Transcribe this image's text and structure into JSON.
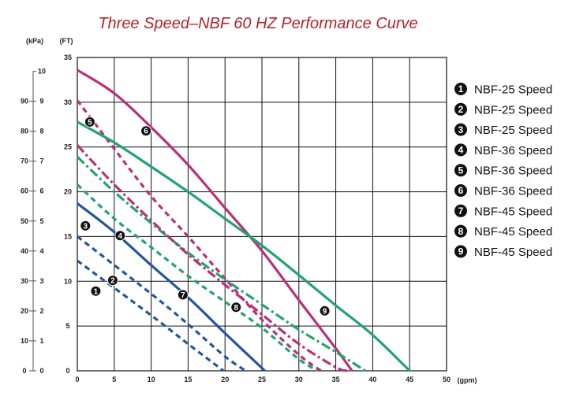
{
  "chart_data": {
    "type": "line",
    "title": "Three Speed–NBF 60 HZ Performance Curve",
    "x_unit": "(gpm)",
    "y_unit_ft": "(FT)",
    "y_unit_kpa": "(kPa)",
    "xlim": [
      0,
      50
    ],
    "ylim": [
      0,
      35
    ],
    "x_ticks": [
      "0",
      "5",
      "10",
      "15",
      "20",
      "25",
      "30",
      "35",
      "40",
      "45",
      "50"
    ],
    "y_ticks_ft": [
      "0",
      "5",
      "10",
      "15",
      "20",
      "25",
      "30",
      "35"
    ],
    "y_ticks_kpa": [
      "0",
      "10",
      "20",
      "30",
      "40",
      "50",
      "60",
      "70",
      "80",
      "90"
    ],
    "y_ticks_kpa_minor": [
      "0",
      "1",
      "2",
      "3",
      "4",
      "5",
      "6",
      "7",
      "8",
      "9",
      "10"
    ],
    "grid": true,
    "legend_position": "right",
    "colors": {
      "blue": "#23569e",
      "magenta": "#b8307a",
      "green": "#23a36f"
    },
    "series": [
      {
        "name": "NBF-25 Speed",
        "marker": "1",
        "color": "#23569e",
        "style": "dashed",
        "x": [
          0,
          10,
          15,
          19.8
        ],
        "y": [
          12.3,
          6.2,
          3.0,
          0
        ]
      },
      {
        "name": "NBF-25 Speed",
        "marker": "2",
        "color": "#23569e",
        "style": "dashed",
        "x": [
          0,
          10,
          15,
          20,
          22.8
        ],
        "y": [
          15.0,
          8.6,
          5.2,
          1.6,
          0
        ]
      },
      {
        "name": "NBF-25 Speed",
        "marker": "3",
        "color": "#23569e",
        "style": "solid",
        "x": [
          0,
          5,
          10,
          15,
          20,
          25.4
        ],
        "y": [
          18.7,
          15.5,
          11.8,
          8.2,
          4.2,
          0
        ]
      },
      {
        "name": "NBF-36 Speed",
        "marker": "4",
        "color": "#23a36f",
        "style": "dashed",
        "x": [
          0,
          5,
          10,
          15,
          20,
          25,
          30,
          32.6
        ],
        "y": [
          20.8,
          17.0,
          13.8,
          10.6,
          7.7,
          4.8,
          1.3,
          0
        ]
      },
      {
        "name": "NBF-36 Speed",
        "marker": "5",
        "color": "#b8307a",
        "style": "dashed",
        "x": [
          0,
          5,
          10,
          15,
          20,
          25,
          30,
          33.0
        ],
        "y": [
          30.2,
          24.8,
          19.5,
          15.0,
          10.3,
          5.7,
          1.8,
          0
        ]
      },
      {
        "name": "NBF-36 Speed",
        "marker": "6",
        "color": "#b8307a",
        "style": "solid",
        "x": [
          0,
          5,
          10,
          15,
          20,
          25,
          30,
          35,
          37.2
        ],
        "y": [
          33.6,
          31.0,
          27.2,
          23.0,
          18.2,
          13.4,
          7.9,
          2.5,
          0
        ]
      },
      {
        "name": "NBF-45 Speed",
        "marker": "7",
        "color": "#23a36f",
        "style": "dashdot",
        "x": [
          0,
          5,
          10,
          15,
          20,
          25,
          30,
          35,
          39.0
        ],
        "y": [
          23.9,
          20.0,
          16.5,
          13.2,
          10.2,
          7.4,
          4.6,
          2.1,
          0
        ]
      },
      {
        "name": "NBF-45 Speed",
        "marker": "8",
        "color": "#b8307a",
        "style": "dashdot",
        "x": [
          0,
          5,
          10,
          15,
          20,
          25,
          30,
          35,
          36.5
        ],
        "y": [
          25.2,
          20.8,
          16.8,
          13.0,
          9.6,
          6.3,
          3.0,
          0.4,
          0
        ]
      },
      {
        "name": "NBF-45 Speed",
        "marker": "9",
        "color": "#23a36f",
        "style": "solid",
        "x": [
          0,
          5,
          10,
          15,
          20,
          25,
          30,
          35,
          40,
          45
        ],
        "y": [
          27.8,
          25.5,
          22.8,
          20.0,
          17.0,
          14.0,
          10.7,
          7.3,
          4.0,
          0
        ]
      }
    ],
    "curve_labels": [
      {
        "marker": "1",
        "x": 2.5,
        "y": 8.9
      },
      {
        "marker": "2",
        "x": 4.8,
        "y": 10.1
      },
      {
        "marker": "3",
        "x": 1.1,
        "y": 16.2
      },
      {
        "marker": "4",
        "x": 5.8,
        "y": 15.1
      },
      {
        "marker": "5",
        "x": 1.7,
        "y": 27.8
      },
      {
        "marker": "6",
        "x": 9.3,
        "y": 26.8
      },
      {
        "marker": "7",
        "x": 14.3,
        "y": 8.5
      },
      {
        "marker": "8",
        "x": 21.5,
        "y": 7.1
      },
      {
        "marker": "9",
        "x": 33.5,
        "y": 6.7
      }
    ]
  }
}
